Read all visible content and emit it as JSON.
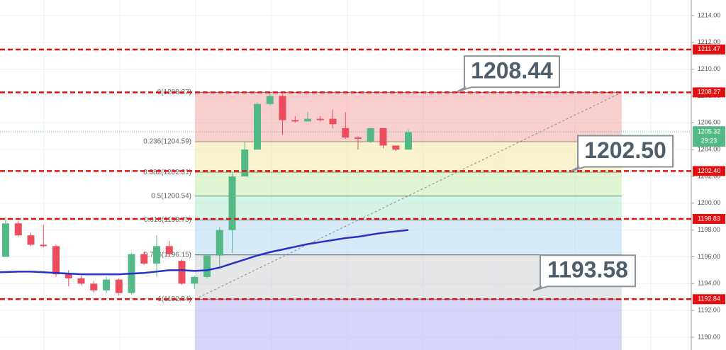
{
  "chart_data": {
    "type": "candlestick",
    "ylim": [
      1189.05,
      1215.16
    ],
    "yticks": [
      {
        "value": 1190,
        "label": "1190.00"
      },
      {
        "value": 1192,
        "label": "1192.00"
      },
      {
        "value": 1194,
        "label": "1194.00"
      },
      {
        "value": 1196,
        "label": "1196.00"
      },
      {
        "value": 1198,
        "label": "1198.00"
      },
      {
        "value": 1200,
        "label": "1200.00"
      },
      {
        "value": 1202,
        "label": "1202.00"
      },
      {
        "value": 1204,
        "label": "1204.00"
      },
      {
        "value": 1206,
        "label": "1206.00"
      },
      {
        "value": 1208,
        "label": "1208.00"
      },
      {
        "value": 1210,
        "label": "1210.00"
      },
      {
        "value": 1212,
        "label": "1212.00"
      },
      {
        "value": 1214,
        "label": "1214.00"
      }
    ],
    "grid": true,
    "up_color": "#53b987",
    "down_color": "#eb4d5c",
    "open": [
      1196.0,
      1198.5,
      1197.6,
      1196.9,
      1196.8,
      1194.7,
      1194.4,
      1194.0,
      1193.5,
      1194.3,
      1193.3,
      1196.2,
      1195.5,
      1196.8,
      1195.7,
      1194.0,
      1194.5,
      1196.1,
      1198.0,
      1202.0,
      1204.0,
      1207.4,
      1208.0,
      1206.2,
      1206.1,
      1206.3,
      1206.3,
      1205.6,
      1204.9,
      1204.6,
      1205.6,
      1204.3,
      1204.0
    ],
    "high": [
      1199.0,
      1198.7,
      1197.8,
      1198.4,
      1196.9,
      1195.0,
      1194.6,
      1194.2,
      1194.5,
      1194.4,
      1196.3,
      1196.4,
      1197.6,
      1197.2,
      1195.8,
      1194.6,
      1196.2,
      1198.2,
      1202.2,
      1204.6,
      1207.5,
      1208.2,
      1208.1,
      1206.5,
      1206.8,
      1206.5,
      1207.0,
      1206.8,
      1205.0,
      1205.6,
      1205.6,
      1204.3,
      1205.5
    ],
    "low": [
      1196.0,
      1197.5,
      1196.8,
      1196.7,
      1194.5,
      1193.8,
      1193.9,
      1193.3,
      1193.3,
      1193.1,
      1193.2,
      1195.4,
      1194.5,
      1196.0,
      1193.9,
      1193.6,
      1194.4,
      1195.3,
      1196.3,
      1202.0,
      1204.0,
      1207.3,
      1205.1,
      1206.0,
      1206.1,
      1206.1,
      1205.6,
      1204.8,
      1204.0,
      1204.5,
      1204.1,
      1203.9,
      1204.0
    ],
    "close": [
      1198.5,
      1197.6,
      1196.9,
      1196.8,
      1194.7,
      1194.4,
      1194.0,
      1193.5,
      1194.3,
      1193.3,
      1196.2,
      1195.5,
      1196.8,
      1196.2,
      1194.0,
      1194.5,
      1196.1,
      1198.0,
      1202.0,
      1204.0,
      1207.4,
      1208.0,
      1206.2,
      1206.1,
      1206.3,
      1206.2,
      1205.9,
      1204.9,
      1204.8,
      1205.6,
      1204.3,
      1204.0,
      1205.3
    ],
    "moving_average": {
      "color": "#2531c8",
      "values": [
        1194.85,
        1194.9,
        1194.9,
        1194.85,
        1194.8,
        1194.75,
        1194.7,
        1194.7,
        1194.7,
        1194.7,
        1194.75,
        1194.8,
        1194.9,
        1195.0,
        1195.0,
        1194.95,
        1195.0,
        1195.2,
        1195.5,
        1195.8,
        1196.1,
        1196.35,
        1196.55,
        1196.75,
        1196.95,
        1197.1,
        1197.25,
        1197.4,
        1197.5,
        1197.65,
        1197.8,
        1197.9,
        1198.0
      ]
    },
    "fib_levels": [
      {
        "label": "0(1208.27)",
        "value": 1208.27,
        "color": "#f4a6a6"
      },
      {
        "label": "0.236(1204.59)",
        "value": 1204.59,
        "color": "#f2e7a6"
      },
      {
        "label": "0.382(1202.31)",
        "value": 1202.31,
        "color": "#c9ebb0"
      },
      {
        "label": "0.5(1200.54)",
        "value": 1200.54,
        "color": "#b3ebcf"
      },
      {
        "label": "0.618(1198.75)",
        "value": 1198.75,
        "color": "#b6d9f0"
      },
      {
        "label": "0.786(1196.15)",
        "value": 1196.15,
        "color": "#cfd2d6"
      },
      {
        "label": "1(1192.84)",
        "value": 1192.84,
        "color": "#b2b2f0"
      }
    ],
    "levels": [
      {
        "value": 1211.47,
        "label": "1211.47"
      },
      {
        "value": 1208.27,
        "label": "1208.27"
      },
      {
        "value": 1202.4,
        "label": "1202.40"
      },
      {
        "value": 1198.83,
        "label": "1198.83"
      },
      {
        "value": 1192.84,
        "label": "1192.84"
      }
    ],
    "level_color": "#e41010",
    "current_price": {
      "value": 1205.32,
      "label": "1205.32",
      "timer": "29:23",
      "color": "#53b987"
    },
    "callouts": [
      {
        "value": 1208.44,
        "label": "1208.44"
      },
      {
        "value": 1202.5,
        "label": "1202.50"
      },
      {
        "value": 1193.58,
        "label": "1193.58"
      }
    ]
  }
}
